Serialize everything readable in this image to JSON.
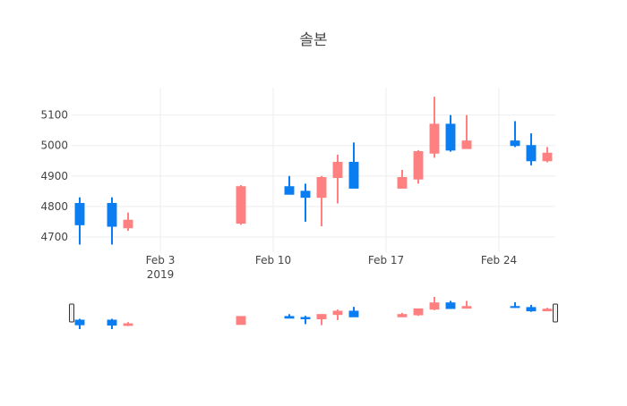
{
  "chart_data": {
    "type": "candlestick",
    "title": "솔본",
    "x": [
      "2019-01-29",
      "2019-01-31",
      "2019-02-01",
      "2019-02-08",
      "2019-02-11",
      "2019-02-12",
      "2019-02-13",
      "2019-02-14",
      "2019-02-15",
      "2019-02-18",
      "2019-02-19",
      "2019-02-20",
      "2019-02-21",
      "2019-02-22",
      "2019-02-25",
      "2019-02-26",
      "2019-02-27"
    ],
    "open": [
      4810,
      4810,
      4730,
      4745,
      4865,
      4850,
      4830,
      4895,
      4945,
      4860,
      4890,
      4975,
      5070,
      4990,
      5015,
      5000,
      4950
    ],
    "high": [
      4830,
      4830,
      4780,
      4870,
      4900,
      4875,
      4900,
      4970,
      5010,
      4920,
      4985,
      5160,
      5100,
      5100,
      5080,
      5040,
      4995
    ],
    "low": [
      4675,
      4675,
      4720,
      4740,
      4840,
      4750,
      4735,
      4810,
      4860,
      4860,
      4875,
      4960,
      4980,
      4990,
      4995,
      4935,
      4945
    ],
    "close": [
      4740,
      4735,
      4755,
      4865,
      4840,
      4830,
      4895,
      4945,
      4860,
      4895,
      4980,
      5070,
      4985,
      5015,
      5000,
      4950,
      4975
    ],
    "increasing_color": "#ff8080",
    "decreasing_color": "#0a7ef0",
    "xlim": [
      "2019-01-28T12:00:00Z",
      "2019-02-27T12:00:00Z"
    ],
    "xticks": [
      {
        "value": "2019-02-03",
        "label": "Feb 3\n2019"
      },
      {
        "value": "2019-02-10",
        "label": "Feb 10"
      },
      {
        "value": "2019-02-17",
        "label": "Feb 17"
      },
      {
        "value": "2019-02-24",
        "label": "Feb 24"
      }
    ],
    "ylim": [
      4650,
      5190
    ],
    "yticks": [
      4700,
      4800,
      4900,
      5000,
      5100
    ],
    "grid": true,
    "range_slider": true
  }
}
